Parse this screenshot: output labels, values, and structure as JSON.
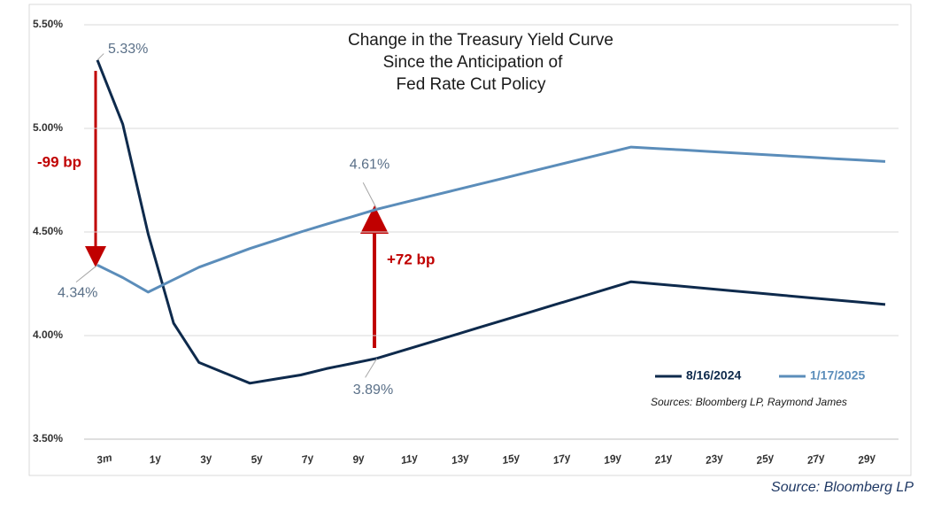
{
  "chart_data": {
    "type": "line",
    "title": [
      "Change in the Treasury Yield Curve",
      "Since the Anticipation of",
      "Fed Rate Cut Policy"
    ],
    "categories": [
      "3m",
      null,
      "1y",
      null,
      "3y",
      null,
      "5y",
      null,
      "7y",
      null,
      "9y",
      null,
      "11y",
      null,
      "13y",
      null,
      "15y",
      null,
      "17y",
      null,
      "19y",
      null,
      "21y",
      null,
      "23y",
      null,
      "25y",
      null,
      "27y",
      null,
      "29y",
      null
    ],
    "series": [
      {
        "name": "8/16/2024",
        "color": "#0e2a4c",
        "values": [
          5.33,
          5.02,
          4.49,
          4.06,
          3.87,
          3.82,
          3.77,
          3.79,
          3.81,
          3.84,
          3.865,
          3.89,
          3.927,
          3.964,
          4.001,
          4.038,
          4.075,
          4.112,
          4.149,
          4.186,
          4.223,
          4.26,
          4.249,
          4.238,
          4.227,
          4.216,
          4.205,
          4.194,
          4.183,
          4.172,
          4.161,
          4.15
        ],
        "value_labels": [
          "5.33%",
          null,
          null,
          null,
          null,
          null,
          null,
          null,
          null,
          null,
          null,
          "3.89%",
          null,
          null,
          null,
          null,
          null,
          null,
          null,
          null,
          null,
          null,
          null,
          null,
          null,
          null,
          null,
          null,
          null,
          null,
          null,
          null
        ]
      },
      {
        "name": "1/17/2025",
        "color": "#5b8dba",
        "values": [
          4.34,
          4.28,
          4.21,
          4.27,
          4.33,
          4.375,
          4.42,
          4.46,
          4.5,
          4.537,
          4.573,
          4.61,
          4.64,
          4.67,
          4.7,
          4.73,
          4.76,
          4.79,
          4.82,
          4.85,
          4.88,
          4.91,
          4.903,
          4.896,
          4.889,
          4.882,
          4.875,
          4.868,
          4.861,
          4.854,
          4.847,
          4.84
        ],
        "value_labels": [
          "4.34%",
          null,
          null,
          null,
          null,
          null,
          null,
          null,
          null,
          null,
          null,
          "4.61%",
          null,
          null,
          null,
          null,
          null,
          null,
          null,
          null,
          null,
          null,
          null,
          null,
          null,
          null,
          null,
          null,
          null,
          null,
          null,
          null
        ]
      }
    ],
    "ylim": [
      3.5,
      5.5
    ],
    "yticks": [
      {
        "value": 3.5,
        "label": "3.50%"
      },
      {
        "value": 4.0,
        "label": "4.00%"
      },
      {
        "value": 4.5,
        "label": "4.50%"
      },
      {
        "value": 5.0,
        "label": "5.00%"
      },
      {
        "value": 5.5,
        "label": "5.50%"
      }
    ],
    "grid": true,
    "legend": "lower right",
    "annotations": [
      "-99 bp",
      "+72 bp"
    ],
    "note": "Sources: Bloomberg LP, Raymond James",
    "source": "Source: Bloomberg LP"
  }
}
